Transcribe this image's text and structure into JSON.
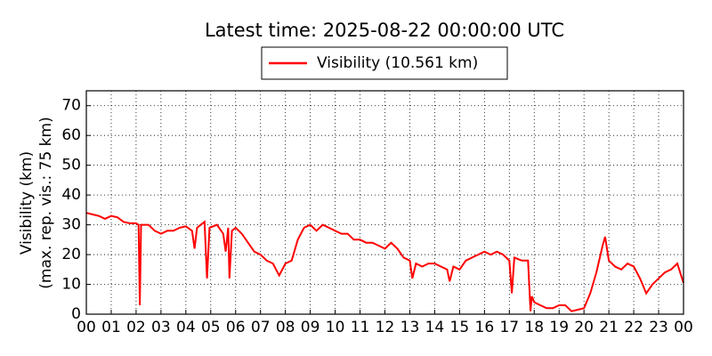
{
  "chart_data": {
    "type": "line",
    "title": "Latest time: 2025-08-22 00:00:00 UTC",
    "ylabel": [
      "Visibility (km)",
      "(max. rep. vis.: 75 km)"
    ],
    "series": [
      {
        "name": "Visibility (10.561 km)",
        "color": "#ff0000",
        "x": [
          0,
          0.25,
          0.5,
          0.75,
          1,
          1.25,
          1.5,
          1.75,
          2,
          2.1,
          2.15,
          2.2,
          2.5,
          2.75,
          3,
          3.25,
          3.5,
          3.75,
          4,
          4.25,
          4.35,
          4.45,
          4.75,
          4.85,
          4.95,
          5.25,
          5.5,
          5.6,
          5.7,
          5.75,
          5.85,
          6,
          6.25,
          6.5,
          6.75,
          7,
          7.25,
          7.5,
          7.75,
          8,
          8.25,
          8.5,
          8.75,
          9,
          9.25,
          9.5,
          9.75,
          10,
          10.25,
          10.5,
          10.75,
          11,
          11.25,
          11.5,
          11.75,
          12,
          12.25,
          12.5,
          12.75,
          13,
          13.1,
          13.25,
          13.5,
          13.75,
          14,
          14.25,
          14.5,
          14.6,
          14.75,
          15,
          15.25,
          15.5,
          15.75,
          16,
          16.25,
          16.5,
          16.75,
          17,
          17.1,
          17.2,
          17.5,
          17.75,
          17.85,
          17.9,
          18,
          18.25,
          18.5,
          18.75,
          19,
          19.25,
          19.5,
          19.75,
          20,
          20.25,
          20.5,
          20.75,
          20.85,
          21,
          21.25,
          21.5,
          21.75,
          22,
          22.25,
          22.5,
          22.75,
          23,
          23.25,
          23.5,
          23.75,
          24
        ],
        "values": [
          34,
          33.5,
          33,
          32,
          33,
          32.5,
          31,
          30.5,
          30.5,
          30,
          3,
          30,
          30,
          28,
          27,
          28,
          28,
          29,
          29.5,
          28,
          22,
          29,
          31,
          12,
          29,
          30,
          27,
          21,
          29,
          12,
          28,
          29,
          27,
          24,
          21,
          20,
          18,
          17,
          13,
          17,
          18,
          25,
          29,
          30,
          28,
          30,
          29,
          28,
          27,
          27,
          25,
          25,
          24,
          24,
          23,
          22,
          24,
          22,
          19,
          18,
          12,
          17,
          16,
          17,
          17,
          16,
          15,
          11,
          16,
          15,
          18,
          19,
          20,
          21,
          20,
          21,
          20,
          18,
          7,
          19,
          18,
          18,
          1,
          6,
          4,
          3,
          2,
          2,
          3,
          3,
          1,
          1.5,
          2,
          7,
          14,
          23,
          26,
          18,
          16,
          15,
          17,
          16,
          12,
          7,
          10,
          12,
          14,
          15,
          17,
          10.5
        ]
      }
    ],
    "xlim": [
      0,
      24
    ],
    "ylim": [
      0,
      75
    ],
    "xticks": [
      {
        "value": 0,
        "label": "00"
      },
      {
        "value": 1,
        "label": "01"
      },
      {
        "value": 2,
        "label": "02"
      },
      {
        "value": 3,
        "label": "03"
      },
      {
        "value": 4,
        "label": "04"
      },
      {
        "value": 5,
        "label": "05"
      },
      {
        "value": 6,
        "label": "06"
      },
      {
        "value": 7,
        "label": "07"
      },
      {
        "value": 8,
        "label": "08"
      },
      {
        "value": 9,
        "label": "09"
      },
      {
        "value": 10,
        "label": "10"
      },
      {
        "value": 11,
        "label": "11"
      },
      {
        "value": 12,
        "label": "12"
      },
      {
        "value": 13,
        "label": "13"
      },
      {
        "value": 14,
        "label": "14"
      },
      {
        "value": 15,
        "label": "15"
      },
      {
        "value": 16,
        "label": "16"
      },
      {
        "value": 17,
        "label": "17"
      },
      {
        "value": 18,
        "label": "18"
      },
      {
        "value": 19,
        "label": "19"
      },
      {
        "value": 20,
        "label": "20"
      },
      {
        "value": 21,
        "label": "21"
      },
      {
        "value": 22,
        "label": "22"
      },
      {
        "value": 23,
        "label": "23"
      },
      {
        "value": 24,
        "label": "00"
      }
    ],
    "yticks": [
      0,
      10,
      20,
      30,
      40,
      50,
      60,
      70
    ],
    "grid": true
  }
}
